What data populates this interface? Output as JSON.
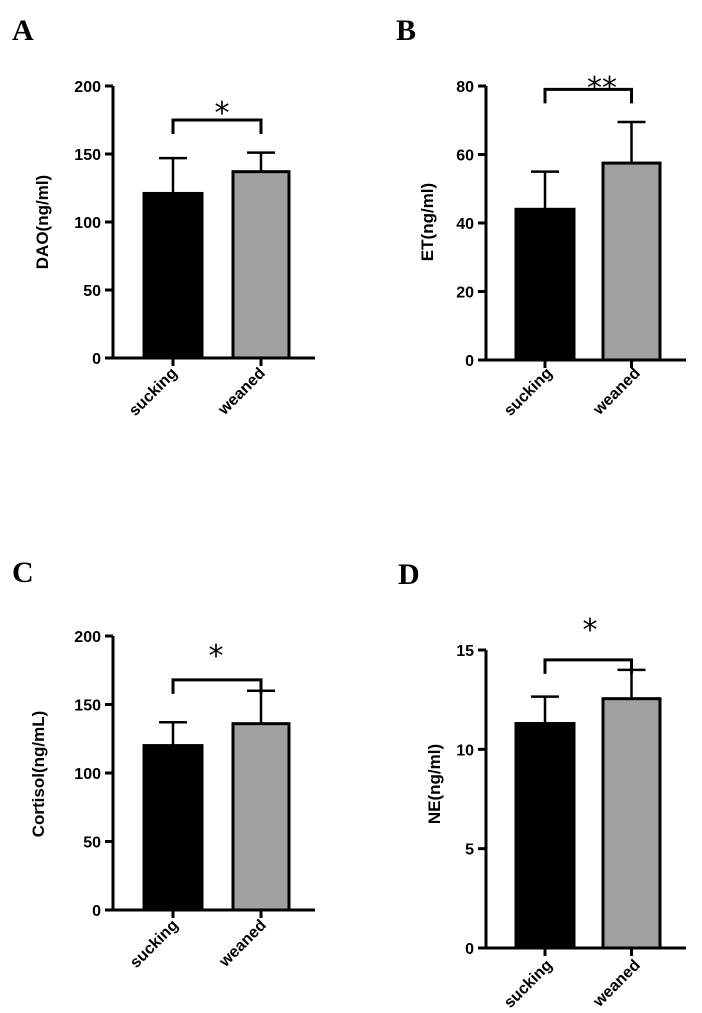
{
  "colors": {
    "sucking": "#000000",
    "weaned": "#a0a0a0",
    "axis": "#000000"
  },
  "chart_data": [
    {
      "panel": "A",
      "type": "bar",
      "categories": [
        "sucking",
        "weaned"
      ],
      "values": [
        121,
        137
      ],
      "errors": [
        26,
        14
      ],
      "ylabel": "DAO(ng/ml)",
      "ylim": [
        0,
        200
      ],
      "yticks": [
        "0",
        "50",
        "100",
        "150",
        "200"
      ],
      "ytick_values": [
        0,
        50,
        100,
        150,
        200
      ],
      "significance": "*",
      "bracket_y": 175
    },
    {
      "panel": "B",
      "type": "bar",
      "categories": [
        "sucking",
        "weaned"
      ],
      "values": [
        44,
        57.5
      ],
      "errors": [
        11,
        12
      ],
      "ylabel": "ET(ng/ml)",
      "ylim": [
        0,
        80
      ],
      "yticks": [
        "0",
        "20",
        "40",
        "60",
        "80"
      ],
      "ytick_values": [
        0,
        20,
        40,
        60,
        80
      ],
      "significance": "**",
      "bracket_y": 79
    },
    {
      "panel": "C",
      "type": "bar",
      "categories": [
        "sucking",
        "weaned"
      ],
      "values": [
        120,
        136
      ],
      "errors": [
        17,
        24
      ],
      "ylabel": "Cortisol(ng/mL)",
      "ylim": [
        0,
        200
      ],
      "yticks": [
        "0",
        "50",
        "100",
        "150",
        "200"
      ],
      "ytick_values": [
        0,
        50,
        100,
        150,
        200
      ],
      "significance": "*",
      "bracket_y": 168
    },
    {
      "panel": "D",
      "type": "bar",
      "categories": [
        "sucking",
        "weaned"
      ],
      "values": [
        11.3,
        12.55
      ],
      "errors": [
        1.35,
        1.45
      ],
      "ylabel": "NE(ng/ml)",
      "ylim": [
        0,
        15
      ],
      "yticks": [
        "0",
        "5",
        "10",
        "15"
      ],
      "ytick_values": [
        0,
        5,
        10,
        15
      ],
      "significance": "*",
      "bracket_y": 14.5
    }
  ]
}
